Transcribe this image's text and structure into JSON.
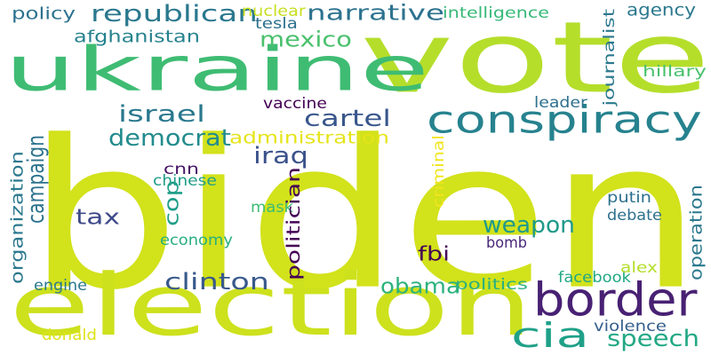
{
  "words": [
    {
      "text": "biden",
      "color": "#d2e21b"
    },
    {
      "text": "vote",
      "color": "#b5de2b"
    },
    {
      "text": "ukraine",
      "color": "#3fbc73"
    },
    {
      "text": "election",
      "color": "#cde11d"
    },
    {
      "text": "border",
      "color": "#482173"
    },
    {
      "text": "conspiracy",
      "color": "#26828e"
    },
    {
      "text": "cia",
      "color": "#1fa088"
    },
    {
      "text": "republican",
      "color": "#2a788e"
    },
    {
      "text": "narrative",
      "color": "#2c728e"
    },
    {
      "text": "mexico",
      "color": "#4ac16d"
    },
    {
      "text": "cartel",
      "color": "#39568c"
    },
    {
      "text": "israel",
      "color": "#2a788e"
    },
    {
      "text": "democrat",
      "color": "#228c8d"
    },
    {
      "text": "campaign",
      "color": "#2c728e"
    },
    {
      "text": "weapon",
      "color": "#1f9a8a"
    },
    {
      "text": "clinton",
      "color": "#38598c"
    },
    {
      "text": "obama",
      "color": "#2db27d"
    },
    {
      "text": "speech",
      "color": "#22a884"
    },
    {
      "text": "agency",
      "color": "#2a788e"
    },
    {
      "text": "afghanistan",
      "color": "#26828e"
    },
    {
      "text": "policy",
      "color": "#2c728e"
    },
    {
      "text": "nuclear",
      "color": "#c8e020"
    },
    {
      "text": "tesla",
      "color": "#2d708e"
    },
    {
      "text": "intelligence",
      "color": "#37b878"
    },
    {
      "text": "journalist",
      "color": "#2a788e"
    },
    {
      "text": "hillary",
      "color": "#4ac16d"
    },
    {
      "text": "leader",
      "color": "#2d708e"
    },
    {
      "text": "vaccine",
      "color": "#440154"
    },
    {
      "text": "administration",
      "color": "#e5e419"
    },
    {
      "text": "iraq",
      "color": "#3b528b"
    },
    {
      "text": "tax",
      "color": "#3e4989"
    },
    {
      "text": "cop",
      "color": "#1f9e89"
    },
    {
      "text": "cnn",
      "color": "#471365"
    },
    {
      "text": "chinese",
      "color": "#1f9e89"
    },
    {
      "text": "mask",
      "color": "#3dbc74"
    },
    {
      "text": "economy",
      "color": "#29af7f"
    },
    {
      "text": "politician",
      "color": "#440154"
    },
    {
      "text": "fbi",
      "color": "#440154"
    },
    {
      "text": "criminal",
      "color": "#f1e51d"
    },
    {
      "text": "organization",
      "color": "#2a788e"
    },
    {
      "text": "putin",
      "color": "#2d708e"
    },
    {
      "text": "debate",
      "color": "#2d708e"
    },
    {
      "text": "bomb",
      "color": "#482878"
    },
    {
      "text": "operation",
      "color": "#2a788e"
    },
    {
      "text": "engine",
      "color": "#2a788e"
    },
    {
      "text": "politics",
      "color": "#2ab07f"
    },
    {
      "text": "facebook",
      "color": "#22a884"
    },
    {
      "text": "alex",
      "color": "#b5de2b"
    },
    {
      "text": "violence",
      "color": "#355f8d"
    },
    {
      "text": "donald",
      "color": "#dde318"
    }
  ]
}
